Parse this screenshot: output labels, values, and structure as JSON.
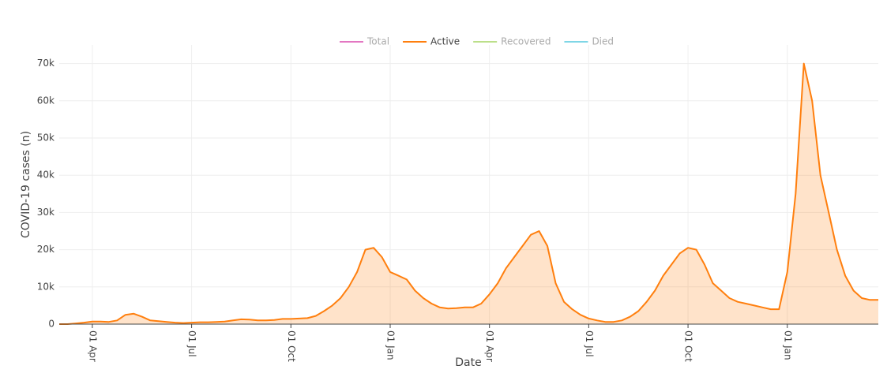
{
  "chart_data": {
    "type": "area",
    "x_label": "Date",
    "y_label": "COVID-19 cases (n)",
    "categories": [
      null,
      null,
      null,
      null,
      "01 Apr",
      null,
      null,
      null,
      null,
      null,
      null,
      null,
      null,
      null,
      null,
      null,
      "01 Jul",
      null,
      null,
      null,
      null,
      null,
      null,
      null,
      null,
      null,
      null,
      null,
      "01 Oct",
      null,
      null,
      null,
      null,
      null,
      null,
      null,
      null,
      null,
      null,
      null,
      "01 Jan",
      null,
      null,
      null,
      null,
      null,
      null,
      null,
      null,
      null,
      null,
      null,
      "01 Apr",
      null,
      null,
      null,
      null,
      null,
      null,
      null,
      null,
      null,
      null,
      null,
      "01 Jul",
      null,
      null,
      null,
      null,
      null,
      null,
      null,
      null,
      null,
      null,
      null,
      "01 Oct",
      null,
      null,
      null,
      null,
      null,
      null,
      null,
      null,
      null,
      null,
      null,
      "01 Jan",
      null,
      null,
      null,
      null,
      null,
      null,
      null,
      null,
      null,
      null,
      null
    ],
    "series": [
      {
        "name": "Total",
        "color": "#e377c2",
        "visible": false
      },
      {
        "name": "Active",
        "color": "#ff7f0e",
        "visible": true,
        "values": [
          0,
          0,
          200,
          400,
          700,
          700,
          600,
          1000,
          2500,
          2800,
          2000,
          1000,
          800,
          600,
          400,
          300,
          400,
          500,
          500,
          600,
          700,
          1000,
          1300,
          1200,
          1000,
          1000,
          1100,
          1400,
          1400,
          1500,
          1600,
          2200,
          3500,
          5000,
          7000,
          10000,
          14000,
          20000,
          20500,
          18000,
          14000,
          13000,
          12000,
          9000,
          7000,
          5500,
          4500,
          4200,
          4300,
          4500,
          4500,
          5500,
          8000,
          11000,
          15000,
          18000,
          21000,
          24000,
          25000,
          21000,
          11000,
          6000,
          4000,
          2500,
          1500,
          1000,
          600,
          600,
          1000,
          2000,
          3500,
          6000,
          9000,
          13000,
          16000,
          19000,
          20500,
          20000,
          16000,
          11000,
          9000,
          7000,
          6000,
          5500,
          5000,
          4500,
          4000,
          4000,
          14000,
          35000,
          70000,
          60000,
          40000,
          30000,
          20000,
          13000,
          9000,
          7000,
          6500,
          6500
        ]
      },
      {
        "name": "Recovered",
        "color": "#bcdf8a",
        "visible": false
      },
      {
        "name": "Died",
        "color": "#7fd6e6",
        "visible": false
      }
    ],
    "ylim": [
      0,
      75000
    ],
    "yticks": [
      0,
      {
        "value": 10000,
        "label": "10k"
      },
      {
        "value": 20000,
        "label": "20k"
      },
      {
        "value": 30000,
        "label": "30k"
      },
      {
        "value": 40000,
        "label": "40k"
      },
      {
        "value": 50000,
        "label": "50k"
      },
      {
        "value": 60000,
        "label": "60k"
      },
      {
        "value": 70000,
        "label": "70k"
      }
    ],
    "grid": true
  }
}
